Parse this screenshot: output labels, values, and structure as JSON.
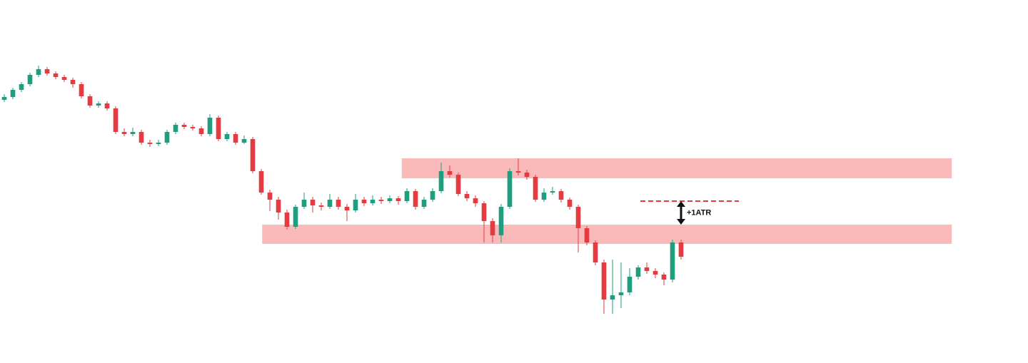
{
  "chart_data": {
    "type": "candlestick",
    "open": [
      92,
      93,
      95.5,
      97.5,
      100.75,
      102.75,
      101.25,
      100,
      99,
      97.5,
      93.25,
      90,
      90.75,
      89,
      80.75,
      80,
      80.75,
      77,
      76.5,
      77,
      80.75,
      83.25,
      82.5,
      82,
      80,
      85.75,
      78.25,
      80,
      77,
      78.25,
      67,
      59.5,
      57,
      52.5,
      47.5,
      54.5,
      57,
      55,
      54.5,
      57,
      54.5,
      53.25,
      57,
      55.75,
      57,
      56.5,
      57.5,
      56.5,
      60,
      54.5,
      57,
      60,
      67,
      65.75,
      59,
      57.5,
      55.75,
      49.5,
      44.5,
      54.5,
      67,
      66.5,
      65,
      57,
      59.5,
      60,
      57,
      54.5,
      47,
      42,
      35,
      22,
      23.5,
      24.5,
      30,
      33.25,
      32,
      30.75,
      29,
      42
    ],
    "high": [
      94,
      96.25,
      98.25,
      101.5,
      104,
      103.5,
      102,
      100.75,
      99.75,
      98.25,
      94,
      91.5,
      91.5,
      89.75,
      82,
      82.25,
      81.5,
      78,
      78,
      81.5,
      84,
      84,
      83.25,
      82.75,
      87,
      86.5,
      80.75,
      80.75,
      79.5,
      79,
      67.75,
      60.5,
      58,
      53.5,
      55.25,
      59.5,
      58,
      56,
      59,
      58,
      55.5,
      59,
      58,
      58.5,
      58,
      58.5,
      58.25,
      61,
      60.75,
      58,
      61,
      70,
      69,
      66.5,
      60,
      58.5,
      56.5,
      50.5,
      55.5,
      68,
      71.5,
      67.5,
      65.75,
      61,
      61.5,
      60.75,
      57.75,
      55.25,
      47.75,
      42.75,
      36,
      36,
      35,
      33,
      34,
      35,
      33,
      31.5,
      43,
      43
    ],
    "low": [
      91.25,
      92.25,
      94.75,
      96.75,
      100,
      100.5,
      99.25,
      98.25,
      96.25,
      92.5,
      89.25,
      89.25,
      88.25,
      80,
      79.25,
      79.25,
      76.25,
      75.5,
      75.75,
      76.25,
      80,
      81.75,
      81.25,
      79.25,
      79.25,
      77.5,
      77.5,
      76.25,
      76.5,
      66.25,
      58.75,
      53,
      50,
      46.5,
      46.75,
      53.75,
      52.5,
      53.25,
      53.75,
      53.5,
      49.5,
      52.5,
      54.75,
      55,
      55.5,
      55.75,
      55.25,
      55.75,
      53.5,
      53.75,
      56.25,
      59.25,
      64.75,
      58.25,
      56.5,
      54.5,
      42,
      42,
      42,
      53.75,
      65.5,
      64,
      56.25,
      56.25,
      58.75,
      56,
      53.5,
      38.5,
      41,
      34,
      17,
      17,
      19,
      23.5,
      29,
      31,
      29.5,
      27,
      28,
      36
    ],
    "close": [
      93,
      95.5,
      97.5,
      100.75,
      102.75,
      101.25,
      100,
      99,
      97.5,
      93.25,
      90,
      90.75,
      89,
      80.75,
      80,
      80.75,
      77,
      76.5,
      77,
      80.75,
      83.25,
      82.5,
      82,
      80,
      85.75,
      78.25,
      80,
      77,
      78.25,
      67,
      59.5,
      57,
      52.5,
      47.5,
      54.5,
      57,
      55,
      54.5,
      57,
      54.5,
      53.25,
      57,
      55.75,
      57,
      56.5,
      57.5,
      56.5,
      60,
      54.5,
      57,
      60,
      67,
      65.75,
      59,
      57.5,
      55.75,
      49.5,
      44.5,
      54.5,
      67,
      66.5,
      65,
      57,
      59.5,
      60,
      57,
      54.5,
      47,
      42,
      35,
      22,
      23.5,
      24.5,
      30,
      33.25,
      32,
      30.75,
      29,
      42,
      37
    ],
    "up_color": "#1e9e7e",
    "down_color": "#e53a3f",
    "xlim": [
      -0.5,
      119.5
    ],
    "ylim": [
      0,
      127
    ],
    "zones": [
      {
        "x": [
          46.4,
          110.6
        ],
        "y": [
          64.5,
          71.5
        ]
      },
      {
        "x": [
          30.1,
          110.6
        ],
        "y": [
          41.5,
          48.25
        ]
      }
    ],
    "zone_color": "#fbbaba",
    "level": {
      "x": [
        74.25,
        85.75
      ],
      "y": 56.5,
      "color": "#e53a3f"
    },
    "arrow": {
      "x": 79,
      "y": [
        48.25,
        56.5
      ]
    },
    "annotation": "+1ATR"
  }
}
